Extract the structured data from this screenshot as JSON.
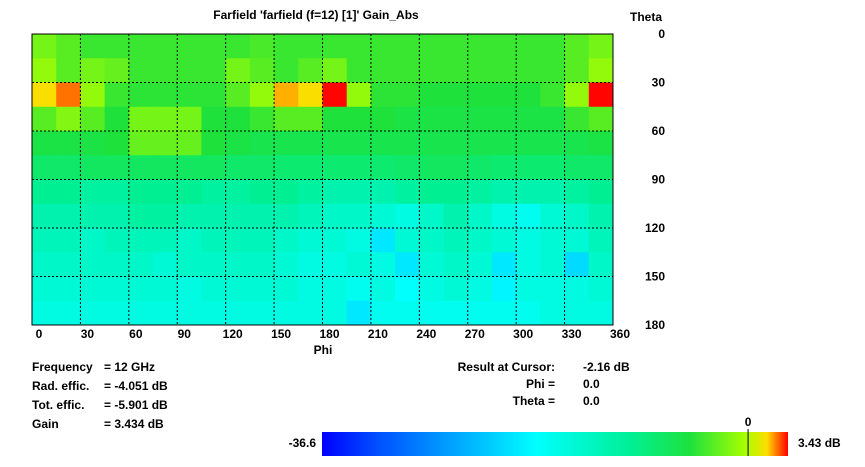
{
  "chart_data": {
    "type": "heatmap",
    "title": "Farfield 'farfield (f=12) [1]' Gain_Abs",
    "xlabel": "Phi",
    "ylabel": "Theta",
    "x": [
      0,
      15,
      30,
      45,
      60,
      75,
      90,
      105,
      120,
      135,
      150,
      165,
      180,
      195,
      210,
      225,
      240,
      255,
      270,
      285,
      300,
      315,
      330,
      345,
      360
    ],
    "y": [
      0,
      15,
      30,
      45,
      60,
      75,
      90,
      105,
      120,
      135,
      150,
      165,
      180
    ],
    "xlim": [
      0,
      360
    ],
    "xticks": [
      0,
      30,
      60,
      90,
      120,
      150,
      180,
      210,
      240,
      270,
      300,
      330,
      360
    ],
    "ylim": [
      0,
      180
    ],
    "yticks": [
      0,
      30,
      60,
      90,
      120,
      150,
      180
    ],
    "grid": true,
    "zlim": [
      -36.6,
      3.43
    ],
    "colorbar_ticks": [
      -36.6,
      0,
      {
        "value": 3.43,
        "label": "3.43 dB"
      }
    ],
    "z": [
      [
        -2,
        -3,
        -4,
        -4,
        -4,
        -4,
        -4,
        -4,
        -4,
        -3.5,
        -4,
        -4,
        -4,
        -4,
        -4,
        -4,
        -4,
        -4,
        -4,
        -4,
        -4,
        -4,
        -3,
        -2
      ],
      [
        -1,
        -3,
        -2,
        -2.5,
        -4,
        -4,
        -4,
        -4,
        -2,
        -3,
        -4,
        -3,
        -2,
        -4,
        -4,
        -4,
        -4,
        -4,
        -4,
        -4,
        -4,
        -4,
        -3,
        -1
      ],
      [
        1.5,
        2.5,
        -1,
        -4,
        -4.5,
        -4.5,
        -4.5,
        -4.5,
        -3,
        -1,
        2,
        1.5,
        3.4,
        -1,
        -4.5,
        -4.5,
        -5,
        -5,
        -5,
        -5,
        -5,
        -4,
        -1,
        3.4
      ],
      [
        -3,
        -1.5,
        -3,
        -5,
        -2,
        -2,
        -2,
        -5,
        -5,
        -4,
        -3,
        -3,
        -5,
        -5,
        -5,
        -5.5,
        -5.5,
        -5.5,
        -5.5,
        -5.5,
        -5.5,
        -5.5,
        -4,
        -3
      ],
      [
        -5.5,
        -5.5,
        -5.5,
        -5,
        -2.5,
        -2.5,
        -2.5,
        -5,
        -5.5,
        -6,
        -6,
        -6,
        -6,
        -6,
        -6,
        -6,
        -6,
        -6,
        -6,
        -6,
        -6,
        -6,
        -6,
        -5.5
      ],
      [
        -7.5,
        -7.5,
        -7,
        -7,
        -7,
        -7,
        -7,
        -7,
        -7.5,
        -7.5,
        -8,
        -8,
        -8,
        -8,
        -8,
        -7.5,
        -7,
        -7,
        -7.5,
        -8,
        -8,
        -8,
        -7.5,
        -7.5
      ],
      [
        -10,
        -10,
        -11,
        -11,
        -10,
        -10,
        -10,
        -11,
        -11,
        -10,
        -10,
        -11,
        -12,
        -12,
        -12,
        -11,
        -10,
        -10,
        -11,
        -12,
        -12,
        -12,
        -11,
        -10
      ],
      [
        -12,
        -12,
        -12,
        -12,
        -11,
        -11,
        -12,
        -12,
        -12,
        -12,
        -12,
        -13,
        -14,
        -14,
        -15,
        -16,
        -14,
        -12,
        -14,
        -16,
        -17,
        -15,
        -14,
        -12
      ],
      [
        -13,
        -13,
        -14,
        -13,
        -13,
        -13,
        -14,
        -13,
        -13,
        -13,
        -14,
        -15,
        -15,
        -16,
        -20,
        -15,
        -14,
        -13,
        -14,
        -15,
        -16,
        -15,
        -15,
        -13
      ],
      [
        -14,
        -14,
        -14,
        -14,
        -14,
        -15,
        -14,
        -14,
        -14,
        -14,
        -15,
        -16,
        -16,
        -15,
        -16,
        -20,
        -15,
        -14,
        -15,
        -20,
        -16,
        -15,
        -21,
        -14
      ],
      [
        -15,
        -15,
        -15,
        -15,
        -15,
        -15,
        -16,
        -15,
        -15,
        -15,
        -15,
        -16,
        -16,
        -17,
        -16,
        -18,
        -16,
        -15,
        -16,
        -19,
        -16,
        -16,
        -16,
        -15
      ],
      [
        -16,
        -16,
        -16,
        -16,
        -16,
        -16,
        -16,
        -16,
        -16,
        -16,
        -16,
        -16,
        -16,
        -20,
        -17,
        -17,
        -17,
        -17,
        -17,
        -17,
        -17,
        -16,
        -16,
        -16
      ]
    ],
    "info": [
      {
        "label": "Frequency",
        "value": "= 12 GHz"
      },
      {
        "label": "Rad. effic.",
        "value": "= -4.051 dB"
      },
      {
        "label": "Tot. effic.",
        "value": "= -5.901 dB"
      },
      {
        "label": "Gain",
        "value": "= 3.434 dB"
      }
    ],
    "cursor": [
      {
        "label": "Result at Cursor:",
        "value": "-2.16 dB"
      },
      {
        "label": "Phi =",
        "value": "0.0"
      },
      {
        "label": "Theta =",
        "value": "0.0"
      }
    ]
  }
}
